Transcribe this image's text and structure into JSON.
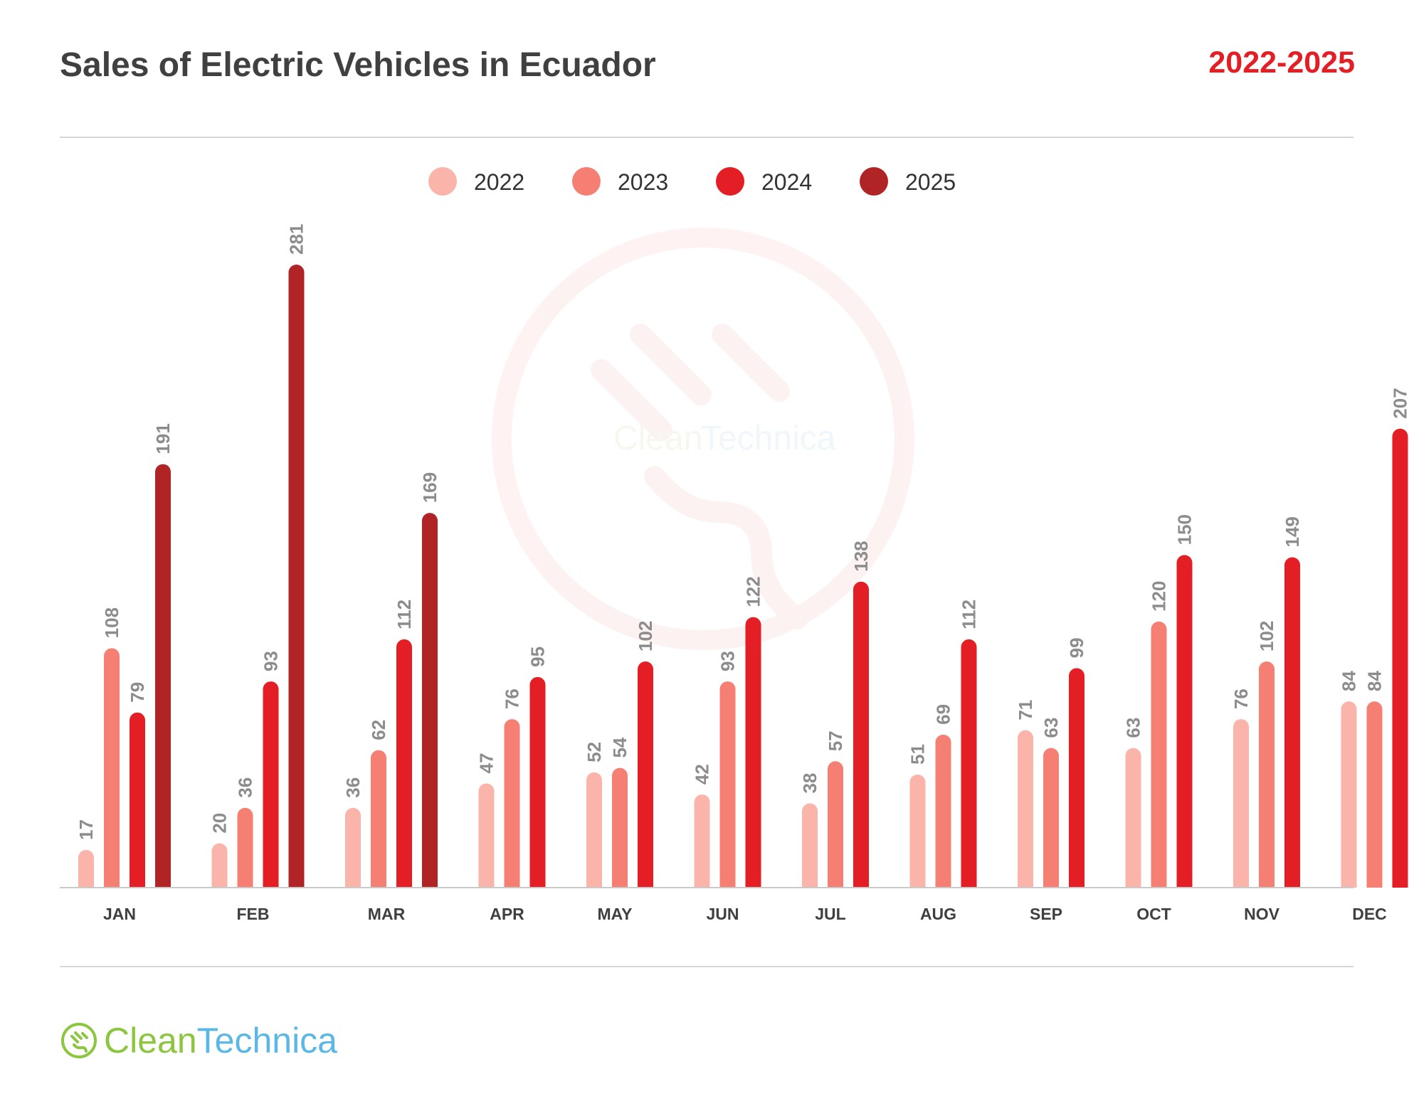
{
  "header": {
    "title": "Sales of Electric Vehicles in Ecuador",
    "period": "2022-2025"
  },
  "watermark": {
    "brand_part1": "Clean",
    "brand_part2": "Technica"
  },
  "footer": {
    "brand_part1": "Clean",
    "brand_part2": "Technica"
  },
  "colors": {
    "2022": "#fbb4a9",
    "2023": "#f47f72",
    "2024": "#e31e24",
    "2025": "#b02425",
    "title": "#404040",
    "accent": "#e31e24",
    "brand_green": "#8cc63f",
    "brand_blue": "#5bb8e6"
  },
  "chart_data": {
    "type": "bar",
    "title": "Sales of Electric Vehicles in Ecuador",
    "subtitle": "2022-2025",
    "xlabel": "",
    "ylabel": "",
    "ylim": [
      0,
      281
    ],
    "grid": false,
    "legend_position": "top-center",
    "categories": [
      "JAN",
      "FEB",
      "MAR",
      "APR",
      "MAY",
      "JUN",
      "JUL",
      "AUG",
      "SEP",
      "OCT",
      "NOV",
      "DEC"
    ],
    "series": [
      {
        "name": "2022",
        "color": "#fbb4a9",
        "values": [
          17,
          20,
          36,
          47,
          52,
          42,
          38,
          51,
          71,
          63,
          76,
          84
        ]
      },
      {
        "name": "2023",
        "color": "#f47f72",
        "values": [
          108,
          36,
          62,
          76,
          54,
          93,
          57,
          69,
          63,
          120,
          102,
          84
        ]
      },
      {
        "name": "2024",
        "color": "#e31e24",
        "values": [
          79,
          93,
          112,
          95,
          102,
          122,
          138,
          112,
          99,
          150,
          149,
          207
        ]
      },
      {
        "name": "2025",
        "color": "#b02425",
        "values": [
          191,
          281,
          169,
          null,
          null,
          null,
          null,
          null,
          null,
          null,
          null,
          null
        ]
      }
    ]
  }
}
